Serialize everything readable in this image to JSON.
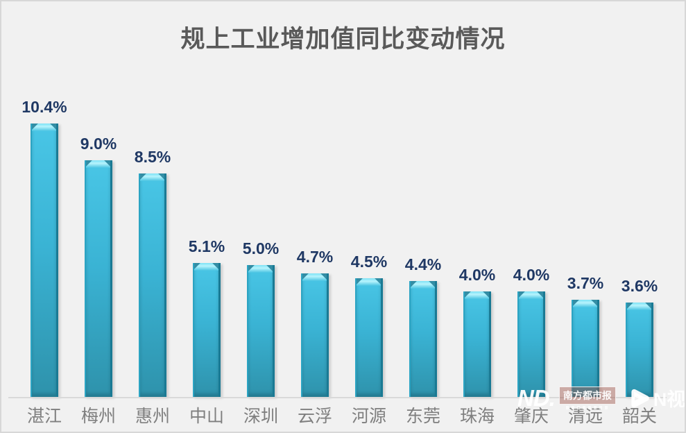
{
  "chart_data": {
    "type": "bar",
    "title": "规上工业增加值同比变动情况",
    "categories": [
      "湛江",
      "梅州",
      "惠州",
      "中山",
      "深圳",
      "云浮",
      "河源",
      "东莞",
      "珠海",
      "肇庆",
      "清远",
      "韶关"
    ],
    "values": [
      10.4,
      9.0,
      8.5,
      5.1,
      5.0,
      4.7,
      4.5,
      4.4,
      4.0,
      4.0,
      3.7,
      3.6
    ],
    "value_labels": [
      "10.4%",
      "9.0%",
      "8.5%",
      "5.1%",
      "5.0%",
      "4.7%",
      "4.5%",
      "4.4%",
      "4.0%",
      "4.0%",
      "3.7%",
      "3.6%"
    ],
    "value_suffix": "%",
    "xlabel": "",
    "ylabel": "",
    "ylim": [
      0,
      12.4
    ],
    "grid": false,
    "legend": "none",
    "data_labels": "above-bars"
  },
  "theme": {
    "bg": "#f1f1f1",
    "frame-border": "#d7d7d7",
    "title-color": "#595959",
    "label-color": "#1f3864",
    "category-color": "#7f7f7f",
    "axis-color": "#d9d9d9",
    "bar-main": "#3ab3d4",
    "bar-dark": "#2e92ab",
    "bar-light": "#b7f4fd",
    "bar-edge": "#1a7a94"
  },
  "watermark": {
    "nd_logo_text": "ND.",
    "nd_box_text": "南方都市报",
    "nvideo_icon": "play-icon",
    "nvideo_text": "N视频"
  }
}
